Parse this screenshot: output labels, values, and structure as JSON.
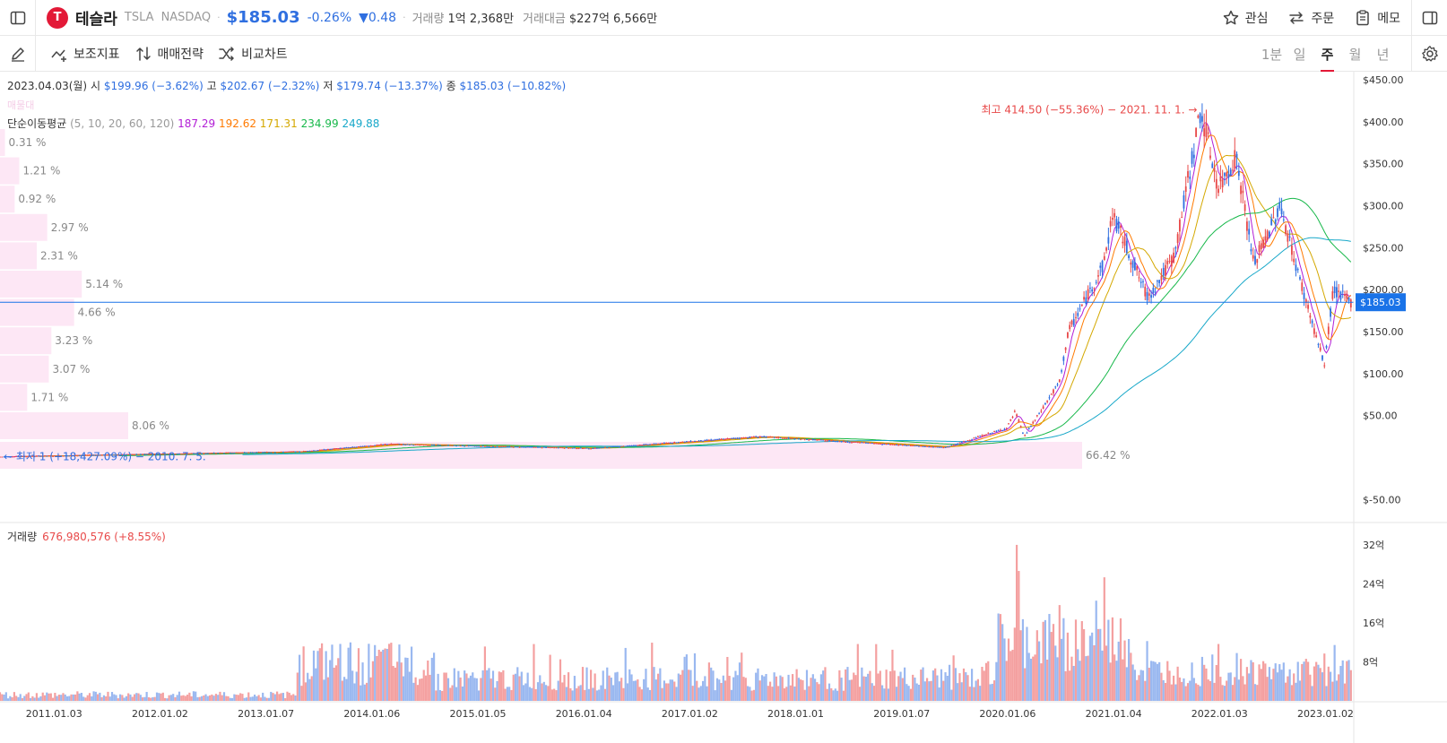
{
  "header": {
    "stock_name": "테슬라",
    "ticker": "TSLA",
    "exchange": "NASDAQ",
    "price": "$185.03",
    "change_pct": "-0.26%",
    "change_abs": "▼0.48",
    "volume_label": "거래량",
    "volume_value": "1억 2,368만",
    "amount_label": "거래대금",
    "amount_value": "$227억 6,566만",
    "actions": [
      {
        "label": "관심",
        "icon": "star-icon"
      },
      {
        "label": "주문",
        "icon": "swap-icon"
      },
      {
        "label": "메모",
        "icon": "clipboard-icon"
      }
    ]
  },
  "toolbar": {
    "items": [
      {
        "label": "보조지표",
        "icon": "indicator-icon"
      },
      {
        "label": "매매전략",
        "icon": "strategy-icon"
      },
      {
        "label": "비교차트",
        "icon": "compare-icon"
      }
    ],
    "periods": [
      "1분",
      "일",
      "주",
      "월",
      "년"
    ],
    "active_period": "주"
  },
  "ohlc": {
    "date": "2023.04.03(월)",
    "open_label": "시",
    "open": "$199.96 (−3.62%)",
    "high_label": "고",
    "high": "$202.67 (−2.32%)",
    "low_label": "저",
    "low": "$179.74 (−13.37%)",
    "close_label": "종",
    "close": "$185.03 (−10.82%)"
  },
  "moving_average": {
    "label": "단순이동평균",
    "params": "(5, 10, 20, 60, 120)",
    "values": [
      "187.29",
      "192.62",
      "171.31",
      "234.99",
      "249.88"
    ],
    "colors": [
      "#b21ed6",
      "#ff7a00",
      "#d4a800",
      "#17b84a",
      "#18a8c9"
    ]
  },
  "annotations": {
    "high_marker": "최고 414.50 (−55.36%) − 2021. 11. 1. →",
    "low_marker": "← 최저 1 (+18,427.09%) − 2010. 7. 5.",
    "current_price_tag": "$185.03",
    "faint_label": "매물대"
  },
  "volume_header": {
    "label": "거래량",
    "value": "676,980,576 (+8.55%)"
  },
  "colors": {
    "up": "#e84a4a",
    "down": "#2f6fe0",
    "volume_profile": "#fde7f5",
    "price_line": "#1a73e8"
  },
  "chart_data": {
    "type": "candlestick",
    "interval": "weekly",
    "price_axis": {
      "ticks": [
        "$450.00",
        "$400.00",
        "$350.00",
        "$300.00",
        "$250.00",
        "$200.00",
        "$150.00",
        "$100.00",
        "$50.00",
        "$-50.00"
      ],
      "tick_values": [
        450,
        400,
        350,
        300,
        250,
        200,
        150,
        100,
        50,
        -50
      ]
    },
    "volume_axis": {
      "ticks": [
        "32억",
        "24억",
        "16억",
        "8억"
      ],
      "tick_values": [
        32,
        24,
        16,
        8
      ]
    },
    "x_axis_labels": [
      "2011.01.03",
      "2012.01.02",
      "2013.01.07",
      "2014.01.06",
      "2015.01.05",
      "2016.01.04",
      "2017.01.02",
      "2018.01.01",
      "2019.01.07",
      "2020.01.06",
      "2021.01.04",
      "2022.01.03",
      "2023.01.02"
    ],
    "volume_profile": [
      {
        "pct": "0.31 %",
        "value": 0.31
      },
      {
        "pct": "1.21 %",
        "value": 1.21
      },
      {
        "pct": "0.92 %",
        "value": 0.92
      },
      {
        "pct": "2.97 %",
        "value": 2.97
      },
      {
        "pct": "2.31 %",
        "value": 2.31
      },
      {
        "pct": "5.14 %",
        "value": 5.14
      },
      {
        "pct": "4.66 %",
        "value": 4.66
      },
      {
        "pct": "3.23 %",
        "value": 3.23
      },
      {
        "pct": "3.07 %",
        "value": 3.07
      },
      {
        "pct": "1.71 %",
        "value": 1.71
      },
      {
        "pct": "8.06 %",
        "value": 8.06
      },
      {
        "pct": "66.42 %",
        "value": 66.42
      }
    ],
    "price_keypoints": [
      {
        "date": "2010-07",
        "close": 1
      },
      {
        "date": "2013-05",
        "close": 7
      },
      {
        "date": "2014-03",
        "close": 16
      },
      {
        "date": "2016-02",
        "close": 11
      },
      {
        "date": "2017-09",
        "close": 25
      },
      {
        "date": "2019-06",
        "close": 12
      },
      {
        "date": "2020-01",
        "close": 35
      },
      {
        "date": "2020-02",
        "close": 55
      },
      {
        "date": "2020-03",
        "close": 25
      },
      {
        "date": "2020-07",
        "close": 90
      },
      {
        "date": "2020-08",
        "close": 150
      },
      {
        "date": "2020-12",
        "close": 230
      },
      {
        "date": "2021-01",
        "close": 290
      },
      {
        "date": "2021-05",
        "close": 190
      },
      {
        "date": "2021-08",
        "close": 240
      },
      {
        "date": "2021-11",
        "close": 414.5
      },
      {
        "date": "2022-01",
        "close": 320
      },
      {
        "date": "2022-03",
        "close": 360
      },
      {
        "date": "2022-05",
        "close": 230
      },
      {
        "date": "2022-08",
        "close": 300
      },
      {
        "date": "2022-10",
        "close": 220
      },
      {
        "date": "2023-01",
        "close": 110
      },
      {
        "date": "2023-02",
        "close": 200
      },
      {
        "date": "2023-04",
        "close": 185.03
      }
    ]
  }
}
